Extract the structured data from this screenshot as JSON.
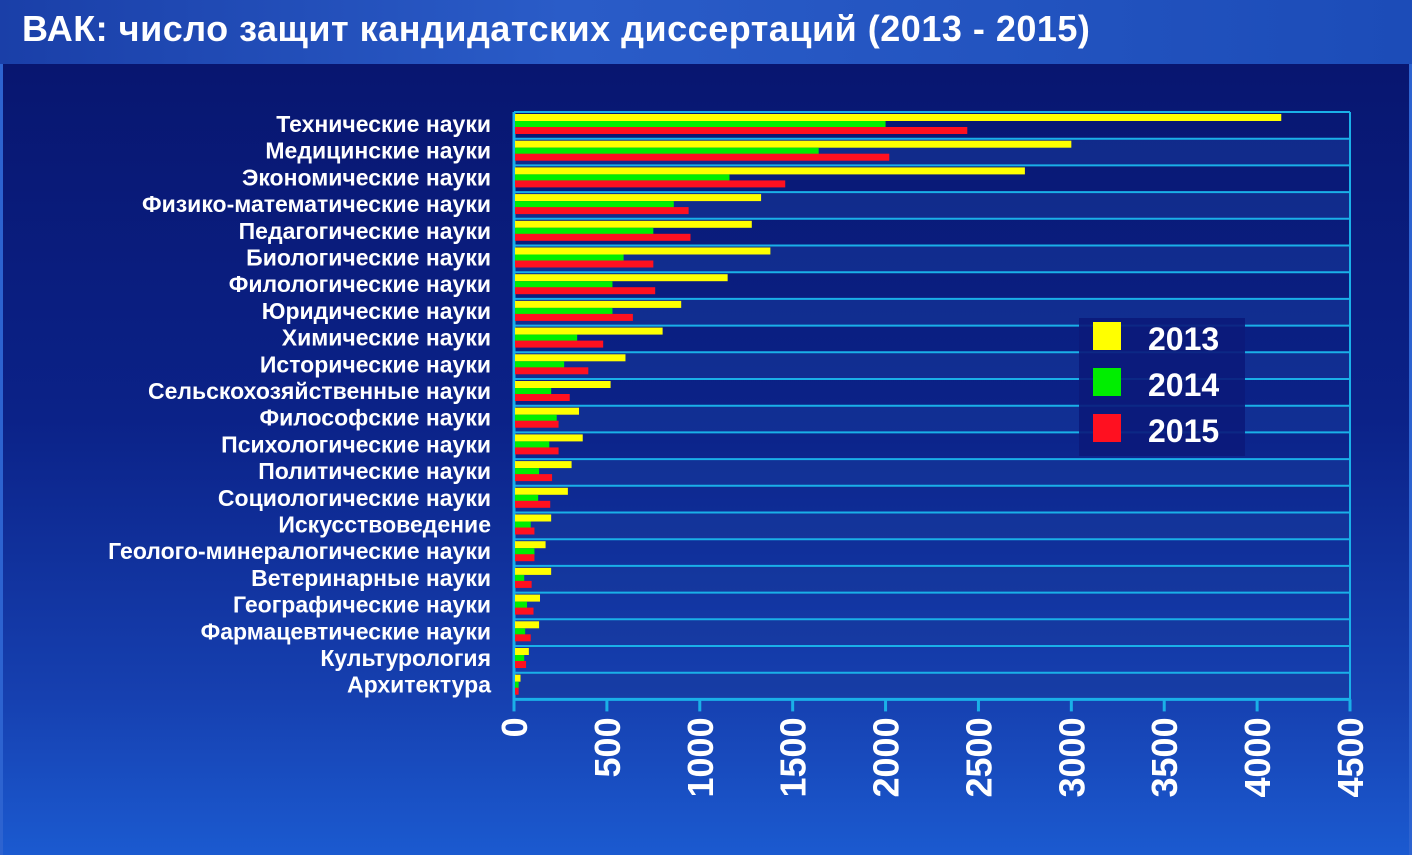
{
  "title": "ВАК: число защит кандидатских диссертаций (2013 - 2015)",
  "colors": {
    "s2013": "#ffff00",
    "s2014": "#00ee00",
    "s2015": "#ff1020",
    "grid": "#1ab0e8",
    "label": "#ffffff",
    "row_alt": "#173a9c"
  },
  "chart_data": {
    "type": "bar",
    "orientation": "horizontal",
    "title": "ВАК: число защит кандидатских диссертаций (2013 - 2015)",
    "xlabel": "",
    "ylabel": "",
    "xlim": [
      0,
      4500
    ],
    "xticks": [
      "0",
      "500",
      "1000",
      "1500",
      "2000",
      "2500",
      "3000",
      "3500",
      "4000",
      "4500"
    ],
    "legend_position": "right",
    "categories": [
      "Технические науки",
      "Медицинские науки",
      "Экономические науки",
      "Физико-математические науки",
      "Педагогические науки",
      "Биологические науки",
      "Филологические науки",
      "Юридические науки",
      "Химические науки",
      "Исторические науки",
      "Сельскохозяйственные науки",
      "Философские науки",
      "Психологические науки",
      "Политические науки",
      "Социологические науки",
      "Искусствоведение",
      "Геолого-минералогические науки",
      "Ветеринарные науки",
      "Географические науки",
      "Фармацевтические науки",
      "Культурология",
      "Архитектура"
    ],
    "series": [
      {
        "name": "2013",
        "values": [
          4130,
          3000,
          2750,
          1330,
          1280,
          1380,
          1150,
          900,
          800,
          600,
          520,
          350,
          370,
          310,
          290,
          200,
          170,
          200,
          140,
          135,
          80,
          35
        ]
      },
      {
        "name": "2014",
        "values": [
          2000,
          1640,
          1160,
          860,
          750,
          590,
          530,
          530,
          340,
          270,
          200,
          230,
          190,
          135,
          130,
          90,
          110,
          55,
          70,
          60,
          55,
          25
        ]
      },
      {
        "name": "2015",
        "values": [
          2440,
          2020,
          1460,
          940,
          950,
          750,
          760,
          640,
          480,
          400,
          300,
          240,
          240,
          205,
          195,
          110,
          110,
          95,
          105,
          90,
          65,
          25
        ]
      }
    ]
  }
}
